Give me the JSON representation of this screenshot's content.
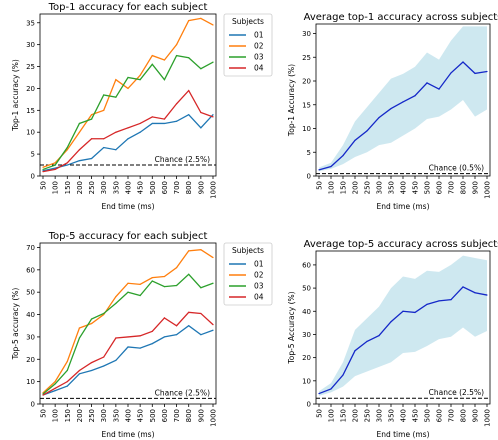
{
  "palette": {
    "s01": "#1f77b4",
    "s02": "#ff7f0e",
    "s03": "#2ca02c",
    "s04": "#d62728",
    "avg_line": "#1528c8",
    "band": "#add8e6"
  },
  "chart_data": [
    {
      "id": "top1-subject",
      "type": "line",
      "title": "Top-1 accuracy for each subject",
      "xlabel": "End time (ms)",
      "ylabel": "Top-1 accuracy (%)",
      "x": [
        50,
        100,
        150,
        200,
        250,
        300,
        350,
        400,
        450,
        500,
        600,
        700,
        800,
        900,
        1000
      ],
      "x_tick_labels": [
        "50",
        "100",
        "150",
        "200",
        "250",
        "300",
        "350",
        "400",
        "450",
        "500",
        "600",
        "700",
        "800",
        "900",
        "1000"
      ],
      "yticks": [
        0,
        5,
        10,
        15,
        20,
        25,
        30,
        35
      ],
      "ylim": [
        0,
        37
      ],
      "legend": {
        "title": "Subjects",
        "placement": "outside-right"
      },
      "series": [
        {
          "name": "01",
          "color": "#1f77b4",
          "values": [
            1.2,
            1.8,
            2.5,
            3.5,
            4.0,
            6.5,
            6.0,
            8.5,
            10.0,
            12.0,
            12.0,
            12.5,
            14.0,
            11.0,
            14.0
          ]
        },
        {
          "name": "02",
          "color": "#ff7f0e",
          "values": [
            2.0,
            3.0,
            6.0,
            10.0,
            14.0,
            15.0,
            22.0,
            20.0,
            23.0,
            27.5,
            26.5,
            30.0,
            35.5,
            36.0,
            34.5
          ]
        },
        {
          "name": "03",
          "color": "#2ca02c",
          "values": [
            1.5,
            2.5,
            6.5,
            12.0,
            13.0,
            18.5,
            18.0,
            22.5,
            22.0,
            25.5,
            22.0,
            27.5,
            27.0,
            24.5,
            26.0
          ]
        },
        {
          "name": "04",
          "color": "#d62728",
          "values": [
            1.0,
            1.5,
            3.0,
            6.0,
            8.5,
            8.5,
            10.0,
            11.0,
            12.0,
            13.5,
            13.0,
            16.5,
            19.5,
            14.5,
            13.5
          ]
        }
      ],
      "chance": {
        "value": 2.5,
        "label": "Chance (2.5%)"
      }
    },
    {
      "id": "top1-average",
      "type": "line",
      "title": "Average top-1 accuracy across subjects",
      "xlabel": "End time (ms)",
      "ylabel": "Top-1 Accuracy (%)",
      "x": [
        50,
        100,
        150,
        200,
        250,
        300,
        350,
        400,
        450,
        500,
        600,
        700,
        800,
        900,
        1000
      ],
      "x_tick_labels": [
        "50",
        "100",
        "150",
        "200",
        "250",
        "300",
        "350",
        "400",
        "450",
        "500",
        "600",
        "700",
        "800",
        "900",
        "1000"
      ],
      "yticks": [
        0,
        5,
        10,
        15,
        20,
        25,
        30
      ],
      "ylim": [
        0,
        32
      ],
      "series": [
        {
          "name": "",
          "color": "#1528c8",
          "values": [
            1.3,
            2.0,
            4.3,
            7.5,
            9.5,
            12.3,
            14.2,
            15.6,
            16.9,
            19.6,
            18.3,
            21.7,
            24.0,
            21.6,
            22.0
          ],
          "band_low": [
            1.0,
            1.5,
            2.5,
            4.0,
            5.0,
            6.5,
            7.0,
            8.5,
            10.0,
            12.0,
            12.5,
            14.0,
            16.0,
            12.5,
            14.0
          ],
          "band_high": [
            1.8,
            2.8,
            6.5,
            11.5,
            14.5,
            17.5,
            20.5,
            21.5,
            23.0,
            26.0,
            24.5,
            28.5,
            31.5,
            31.5,
            31.5
          ]
        }
      ],
      "chance": {
        "value": 0.5,
        "label": "Chance (0.5%)"
      }
    },
    {
      "id": "top5-subject",
      "type": "line",
      "title": "Top-5 accuracy for each subject",
      "xlabel": "End time (ms)",
      "ylabel": "Top-5 accuracy (%)",
      "x": [
        50,
        100,
        150,
        200,
        250,
        300,
        350,
        400,
        450,
        500,
        600,
        700,
        800,
        900,
        1000
      ],
      "x_tick_labels": [
        "50",
        "100",
        "150",
        "200",
        "250",
        "300",
        "350",
        "400",
        "450",
        "500",
        "600",
        "700",
        "800",
        "900",
        "1000"
      ],
      "yticks": [
        0,
        10,
        20,
        30,
        40,
        50,
        60,
        70
      ],
      "ylim": [
        0,
        72
      ],
      "legend": {
        "title": "Subjects",
        "placement": "outside-right"
      },
      "series": [
        {
          "name": "01",
          "color": "#1f77b4",
          "values": [
            4.0,
            6.0,
            8.0,
            13.5,
            15.0,
            17.0,
            19.5,
            25.5,
            25.0,
            27.0,
            30.0,
            31.0,
            35.0,
            31.0,
            33.0
          ]
        },
        {
          "name": "02",
          "color": "#ff7f0e",
          "values": [
            5.0,
            10.0,
            19.0,
            34.0,
            36.0,
            40.0,
            48.0,
            54.0,
            53.5,
            56.5,
            57.0,
            61.0,
            68.5,
            69.0,
            65.5
          ]
        },
        {
          "name": "03",
          "color": "#2ca02c",
          "values": [
            4.5,
            9.0,
            15.0,
            29.5,
            38.0,
            40.5,
            45.0,
            50.0,
            48.5,
            55.0,
            52.5,
            53.0,
            58.0,
            52.0,
            54.0
          ]
        },
        {
          "name": "04",
          "color": "#d62728",
          "values": [
            4.0,
            7.0,
            10.0,
            15.0,
            18.5,
            21.0,
            29.5,
            30.0,
            30.5,
            32.5,
            38.5,
            35.0,
            41.0,
            40.5,
            35.5
          ]
        }
      ],
      "chance": {
        "value": 2.5,
        "label": "Chance (2.5%)"
      }
    },
    {
      "id": "top5-average",
      "type": "line",
      "title": "Average top-5 accuracy across subjects",
      "xlabel": "End time (ms)",
      "ylabel": "Top-5 Accuracy (%)",
      "x": [
        50,
        100,
        150,
        200,
        250,
        300,
        350,
        400,
        450,
        500,
        600,
        700,
        800,
        900,
        1000
      ],
      "x_tick_labels": [
        "50",
        "100",
        "150",
        "200",
        "250",
        "300",
        "350",
        "400",
        "450",
        "500",
        "600",
        "700",
        "800",
        "900",
        "1000"
      ],
      "yticks": [
        0,
        10,
        20,
        30,
        40,
        50,
        60
      ],
      "ylim": [
        0,
        66
      ],
      "series": [
        {
          "name": "",
          "color": "#1528c8",
          "values": [
            4.5,
            6.5,
            12.5,
            23.0,
            27.0,
            29.5,
            35.5,
            40.0,
            39.5,
            43.0,
            44.5,
            45.0,
            50.5,
            48.0,
            47.0
          ],
          "band_low": [
            3.5,
            5.0,
            7.5,
            12.0,
            14.0,
            16.0,
            18.0,
            22.0,
            22.5,
            25.0,
            28.0,
            29.0,
            33.0,
            29.0,
            31.5
          ],
          "band_high": [
            5.5,
            9.0,
            18.0,
            32.0,
            37.0,
            42.0,
            50.0,
            55.0,
            54.0,
            57.5,
            57.0,
            60.0,
            64.0,
            63.0,
            62.0
          ]
        }
      ],
      "chance": {
        "value": 2.5,
        "label": "Chance (2.5%)"
      }
    }
  ]
}
